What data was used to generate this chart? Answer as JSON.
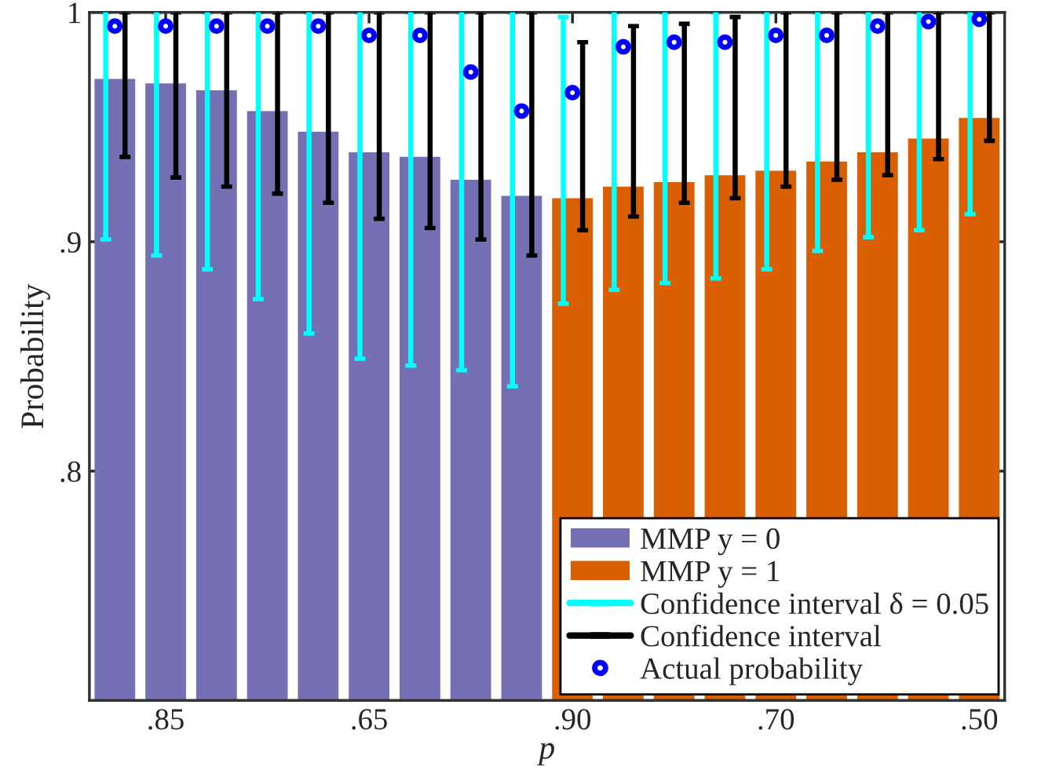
{
  "chart_data": {
    "type": "bar",
    "xlabel": "p",
    "ylabel": "Probability",
    "categories": [
      null,
      ".85",
      null,
      null,
      null,
      ".65",
      null,
      null,
      null,
      ".90",
      null,
      null,
      null,
      ".70",
      null,
      null,
      null,
      ".50"
    ],
    "ylim": [
      0.7,
      1
    ],
    "yticks": [
      {
        "value": 0.8,
        "label": ".8"
      },
      {
        "value": 0.9,
        "label": ".9"
      },
      {
        "value": 1,
        "label": "1"
      }
    ],
    "legend": "bottom right",
    "grid": false,
    "series": [
      {
        "name": "MMP y = 0",
        "color": "#7570b3",
        "values": [
          0.971,
          0.969,
          0.966,
          0.957,
          0.948,
          0.939,
          0.937,
          0.927,
          0.92,
          null,
          null,
          null,
          null,
          null,
          null,
          null,
          null,
          null
        ]
      },
      {
        "name": "MMP y = 1",
        "color": "#d95f02",
        "values": [
          null,
          null,
          null,
          null,
          null,
          null,
          null,
          null,
          null,
          0.919,
          0.924,
          0.926,
          0.929,
          0.931,
          0.935,
          0.939,
          0.945,
          0.954
        ]
      },
      {
        "name": "Confidence interval δ = 0.05",
        "color": "#00ffff",
        "base": [
          0.901,
          0.894,
          0.888,
          0.875,
          0.86,
          0.849,
          0.846,
          0.844,
          0.837,
          0.873,
          0.879,
          0.882,
          0.884,
          0.888,
          0.896,
          0.902,
          0.905,
          0.912
        ],
        "values": [
          0.099,
          0.106,
          0.112,
          0.125,
          0.14,
          0.151,
          0.154,
          0.156,
          0.163,
          0.125,
          0.121,
          0.118,
          0.116,
          0.112,
          0.104,
          0.098,
          0.095,
          0.088
        ]
      },
      {
        "name": "Confidence interval",
        "color": "#000000",
        "base": [
          0.937,
          0.928,
          0.924,
          0.921,
          0.917,
          0.91,
          0.906,
          0.901,
          0.894,
          0.905,
          0.911,
          0.917,
          0.919,
          0.924,
          0.927,
          0.929,
          0.936,
          0.944
        ],
        "values": [
          0.063,
          0.072,
          0.076,
          0.079,
          0.083,
          0.09,
          0.094,
          0.099,
          0.106,
          0.082,
          0.083,
          0.078,
          0.079,
          0.076,
          0.073,
          0.071,
          0.064,
          0.056
        ]
      },
      {
        "name": "Actual probability",
        "type": "scatter",
        "marker": "circle",
        "color": "#0000ff",
        "values": [
          0.994,
          0.994,
          0.994,
          0.994,
          0.994,
          0.99,
          0.99,
          0.974,
          0.957,
          0.965,
          0.985,
          0.987,
          0.987,
          0.99,
          0.99,
          0.994,
          0.996,
          0.997
        ]
      }
    ]
  }
}
